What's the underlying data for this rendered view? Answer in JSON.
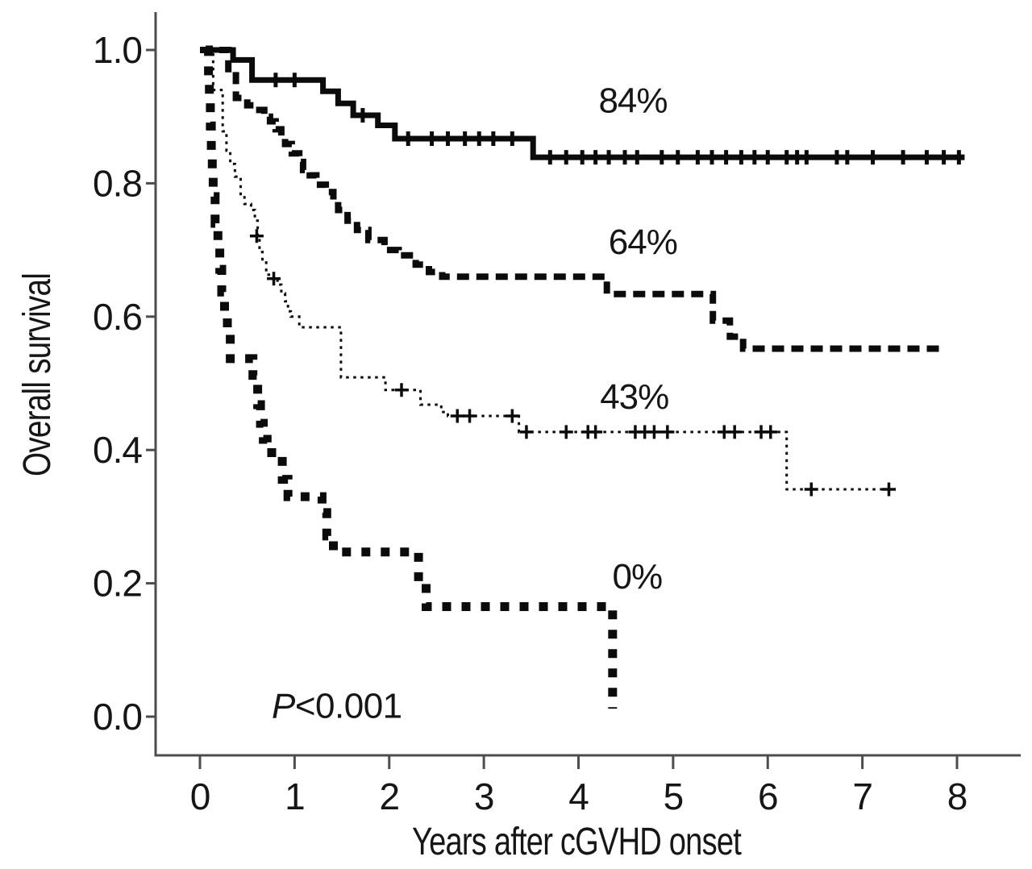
{
  "figure": {
    "background": "#ffffff",
    "ink_color": "#0b0b0b",
    "axis_color": "#4d4d4d"
  },
  "chart_data": {
    "type": "line",
    "subtype": "kaplan-meier-step",
    "title": "",
    "xlabel": "Years after cGVHD onset",
    "ylabel": "Overall survival",
    "xlim": [
      0,
      8
    ],
    "ylim": [
      0.0,
      1.0
    ],
    "xticks": [
      0,
      1,
      2,
      3,
      4,
      5,
      6,
      7,
      8
    ],
    "xtick_labels": [
      "0",
      "1",
      "2",
      "3",
      "4",
      "5",
      "6",
      "7",
      "8"
    ],
    "yticks": [
      1.0,
      0.8,
      0.6,
      0.4,
      0.2,
      0.0
    ],
    "ytick_labels": [
      "1.0",
      "0.8",
      "0.6",
      "0.4",
      "0.2",
      "0.0"
    ],
    "grid": false,
    "legend_position": "inline-labels",
    "annotation": {
      "text": "P<0.001",
      "italic": "P",
      "rest": "<0.001",
      "x": 0.758,
      "y": -0.002
    },
    "series": [
      {
        "name": "group-84pct",
        "label": "84%",
        "label_pos": [
          4.575,
          0.906
        ],
        "line_style": "solid-thick",
        "censor_style": "tick",
        "start": [
          0.0,
          1.0
        ],
        "end_x": 8.08,
        "steps": [
          [
            0.35,
            0.985
          ],
          [
            0.55,
            0.955
          ],
          [
            1.3,
            0.938
          ],
          [
            1.46,
            0.92
          ],
          [
            1.62,
            0.902
          ],
          [
            1.88,
            0.887
          ],
          [
            2.06,
            0.867
          ],
          [
            3.52,
            0.839
          ]
        ],
        "censors": [
          [
            0.8,
            0.955
          ],
          [
            1.0,
            0.955
          ],
          [
            1.72,
            0.902
          ],
          [
            2.2,
            0.867
          ],
          [
            2.45,
            0.867
          ],
          [
            2.62,
            0.867
          ],
          [
            2.8,
            0.867
          ],
          [
            2.95,
            0.867
          ],
          [
            3.1,
            0.867
          ],
          [
            3.3,
            0.867
          ],
          [
            3.7,
            0.839
          ],
          [
            3.87,
            0.839
          ],
          [
            4.04,
            0.839
          ],
          [
            4.18,
            0.839
          ],
          [
            4.32,
            0.839
          ],
          [
            4.49,
            0.839
          ],
          [
            4.62,
            0.839
          ],
          [
            4.88,
            0.839
          ],
          [
            5.05,
            0.839
          ],
          [
            5.26,
            0.839
          ],
          [
            5.41,
            0.839
          ],
          [
            5.56,
            0.839
          ],
          [
            5.72,
            0.839
          ],
          [
            5.86,
            0.839
          ],
          [
            6.0,
            0.839
          ],
          [
            6.2,
            0.839
          ],
          [
            6.31,
            0.839
          ],
          [
            6.41,
            0.839
          ],
          [
            6.73,
            0.839
          ],
          [
            6.84,
            0.839
          ],
          [
            7.11,
            0.839
          ],
          [
            7.43,
            0.839
          ],
          [
            7.68,
            0.839
          ],
          [
            7.86,
            0.839
          ],
          [
            8.02,
            0.839
          ]
        ]
      },
      {
        "name": "group-64pct",
        "label": "64%",
        "label_pos": [
          4.68,
          0.694
        ],
        "line_style": "dashed-heavy",
        "censor_style": "none",
        "start": [
          0.0,
          1.0
        ],
        "end_x": 7.85,
        "steps": [
          [
            0.3,
            0.962
          ],
          [
            0.38,
            0.928
          ],
          [
            0.5,
            0.917
          ],
          [
            0.57,
            0.91
          ],
          [
            0.68,
            0.9
          ],
          [
            0.74,
            0.893
          ],
          [
            0.8,
            0.881
          ],
          [
            0.86,
            0.868
          ],
          [
            0.9,
            0.859
          ],
          [
            0.97,
            0.845
          ],
          [
            1.05,
            0.832
          ],
          [
            1.09,
            0.82
          ],
          [
            1.16,
            0.812
          ],
          [
            1.23,
            0.798
          ],
          [
            1.33,
            0.787
          ],
          [
            1.41,
            0.772
          ],
          [
            1.46,
            0.76
          ],
          [
            1.56,
            0.744
          ],
          [
            1.66,
            0.73
          ],
          [
            1.78,
            0.715
          ],
          [
            1.95,
            0.7
          ],
          [
            2.1,
            0.692
          ],
          [
            2.28,
            0.678
          ],
          [
            2.42,
            0.667
          ],
          [
            2.56,
            0.66
          ],
          [
            4.3,
            0.634
          ],
          [
            5.42,
            0.594
          ],
          [
            5.6,
            0.57
          ],
          [
            5.74,
            0.552
          ]
        ],
        "censors": []
      },
      {
        "name": "group-43pct",
        "label": "43%",
        "label_pos": [
          4.59,
          0.462
        ],
        "line_style": "dotted-fine",
        "censor_style": "plus",
        "start": [
          0.02,
          1.0
        ],
        "end_x": 7.32,
        "steps": [
          [
            0.14,
            0.94
          ],
          [
            0.24,
            0.878
          ],
          [
            0.28,
            0.849
          ],
          [
            0.32,
            0.829
          ],
          [
            0.37,
            0.81
          ],
          [
            0.43,
            0.781
          ],
          [
            0.47,
            0.769
          ],
          [
            0.54,
            0.76
          ],
          [
            0.58,
            0.744
          ],
          [
            0.61,
            0.72
          ],
          [
            0.63,
            0.697
          ],
          [
            0.66,
            0.684
          ],
          [
            0.7,
            0.663
          ],
          [
            0.76,
            0.657
          ],
          [
            0.82,
            0.648
          ],
          [
            0.86,
            0.635
          ],
          [
            0.9,
            0.623
          ],
          [
            0.93,
            0.608
          ],
          [
            0.96,
            0.6
          ],
          [
            1.05,
            0.584
          ],
          [
            1.49,
            0.509
          ],
          [
            1.96,
            0.49
          ],
          [
            2.33,
            0.468
          ],
          [
            2.55,
            0.457
          ],
          [
            2.62,
            0.451
          ],
          [
            3.37,
            0.427
          ],
          [
            6.2,
            0.341
          ]
        ],
        "censors": [
          [
            0.6,
            0.721
          ],
          [
            0.78,
            0.657
          ],
          [
            2.13,
            0.49
          ],
          [
            2.72,
            0.451
          ],
          [
            2.85,
            0.451
          ],
          [
            3.3,
            0.451
          ],
          [
            3.45,
            0.427
          ],
          [
            3.87,
            0.427
          ],
          [
            4.1,
            0.427
          ],
          [
            4.18,
            0.427
          ],
          [
            4.6,
            0.427
          ],
          [
            4.7,
            0.427
          ],
          [
            4.8,
            0.427
          ],
          [
            4.94,
            0.427
          ],
          [
            5.54,
            0.427
          ],
          [
            5.65,
            0.427
          ],
          [
            5.93,
            0.427
          ],
          [
            6.03,
            0.427
          ],
          [
            6.46,
            0.341
          ],
          [
            7.28,
            0.341
          ]
        ]
      },
      {
        "name": "group-0pct",
        "label": "0%",
        "label_pos": [
          4.62,
          0.192
        ],
        "line_style": "dotted-heavy",
        "censor_style": "none",
        "start": [
          0.06,
          1.0
        ],
        "end_x": 4.36,
        "steps": [
          [
            0.09,
            0.957
          ],
          [
            0.1,
            0.922
          ],
          [
            0.11,
            0.886
          ],
          [
            0.12,
            0.849
          ],
          [
            0.13,
            0.812
          ],
          [
            0.14,
            0.78
          ],
          [
            0.16,
            0.74
          ],
          [
            0.19,
            0.71
          ],
          [
            0.21,
            0.671
          ],
          [
            0.23,
            0.637
          ],
          [
            0.26,
            0.602
          ],
          [
            0.29,
            0.576
          ],
          [
            0.32,
            0.537
          ],
          [
            0.56,
            0.512
          ],
          [
            0.61,
            0.468
          ],
          [
            0.64,
            0.44
          ],
          [
            0.67,
            0.416
          ],
          [
            0.71,
            0.396
          ],
          [
            0.87,
            0.356
          ],
          [
            0.93,
            0.33
          ],
          [
            1.29,
            0.306
          ],
          [
            1.34,
            0.271
          ],
          [
            1.41,
            0.247
          ],
          [
            2.31,
            0.202
          ],
          [
            2.39,
            0.165
          ],
          [
            4.36,
            0.012
          ]
        ],
        "censors": []
      }
    ]
  }
}
